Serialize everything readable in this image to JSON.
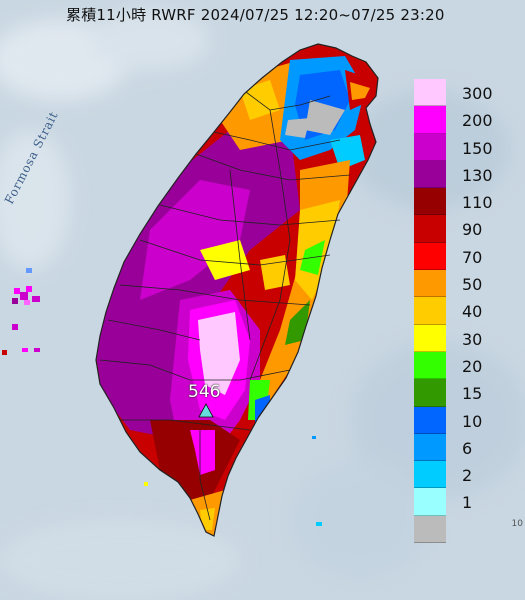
{
  "title": "累積11小時 RWRF 2024/07/25 12:20~07/25 23:20",
  "strait_label": "Formosa Strait",
  "max_value_label": "546",
  "corner_mark": "10",
  "legend": {
    "items": [
      {
        "label": "300",
        "color": "#ffc8ff"
      },
      {
        "label": "200",
        "color": "#ff00ff"
      },
      {
        "label": "150",
        "color": "#cc00cc"
      },
      {
        "label": "130",
        "color": "#990099"
      },
      {
        "label": "110",
        "color": "#960000"
      },
      {
        "label": "90",
        "color": "#c80000"
      },
      {
        "label": "70",
        "color": "#ff0000"
      },
      {
        "label": "50",
        "color": "#ff9900"
      },
      {
        "label": "40",
        "color": "#ffcc00"
      },
      {
        "label": "30",
        "color": "#ffff00"
      },
      {
        "label": "20",
        "color": "#33ff00"
      },
      {
        "label": "15",
        "color": "#339900"
      },
      {
        "label": "10",
        "color": "#0066ff"
      },
      {
        "label": "6",
        "color": "#0099ff"
      },
      {
        "label": "2",
        "color": "#00ccff"
      },
      {
        "label": "1",
        "color": "#99ffff"
      },
      {
        "label": "",
        "color": "#bbbbbb"
      }
    ]
  },
  "colors": {
    "sea": "#c9d7e2",
    "marker": "#66dddd"
  }
}
